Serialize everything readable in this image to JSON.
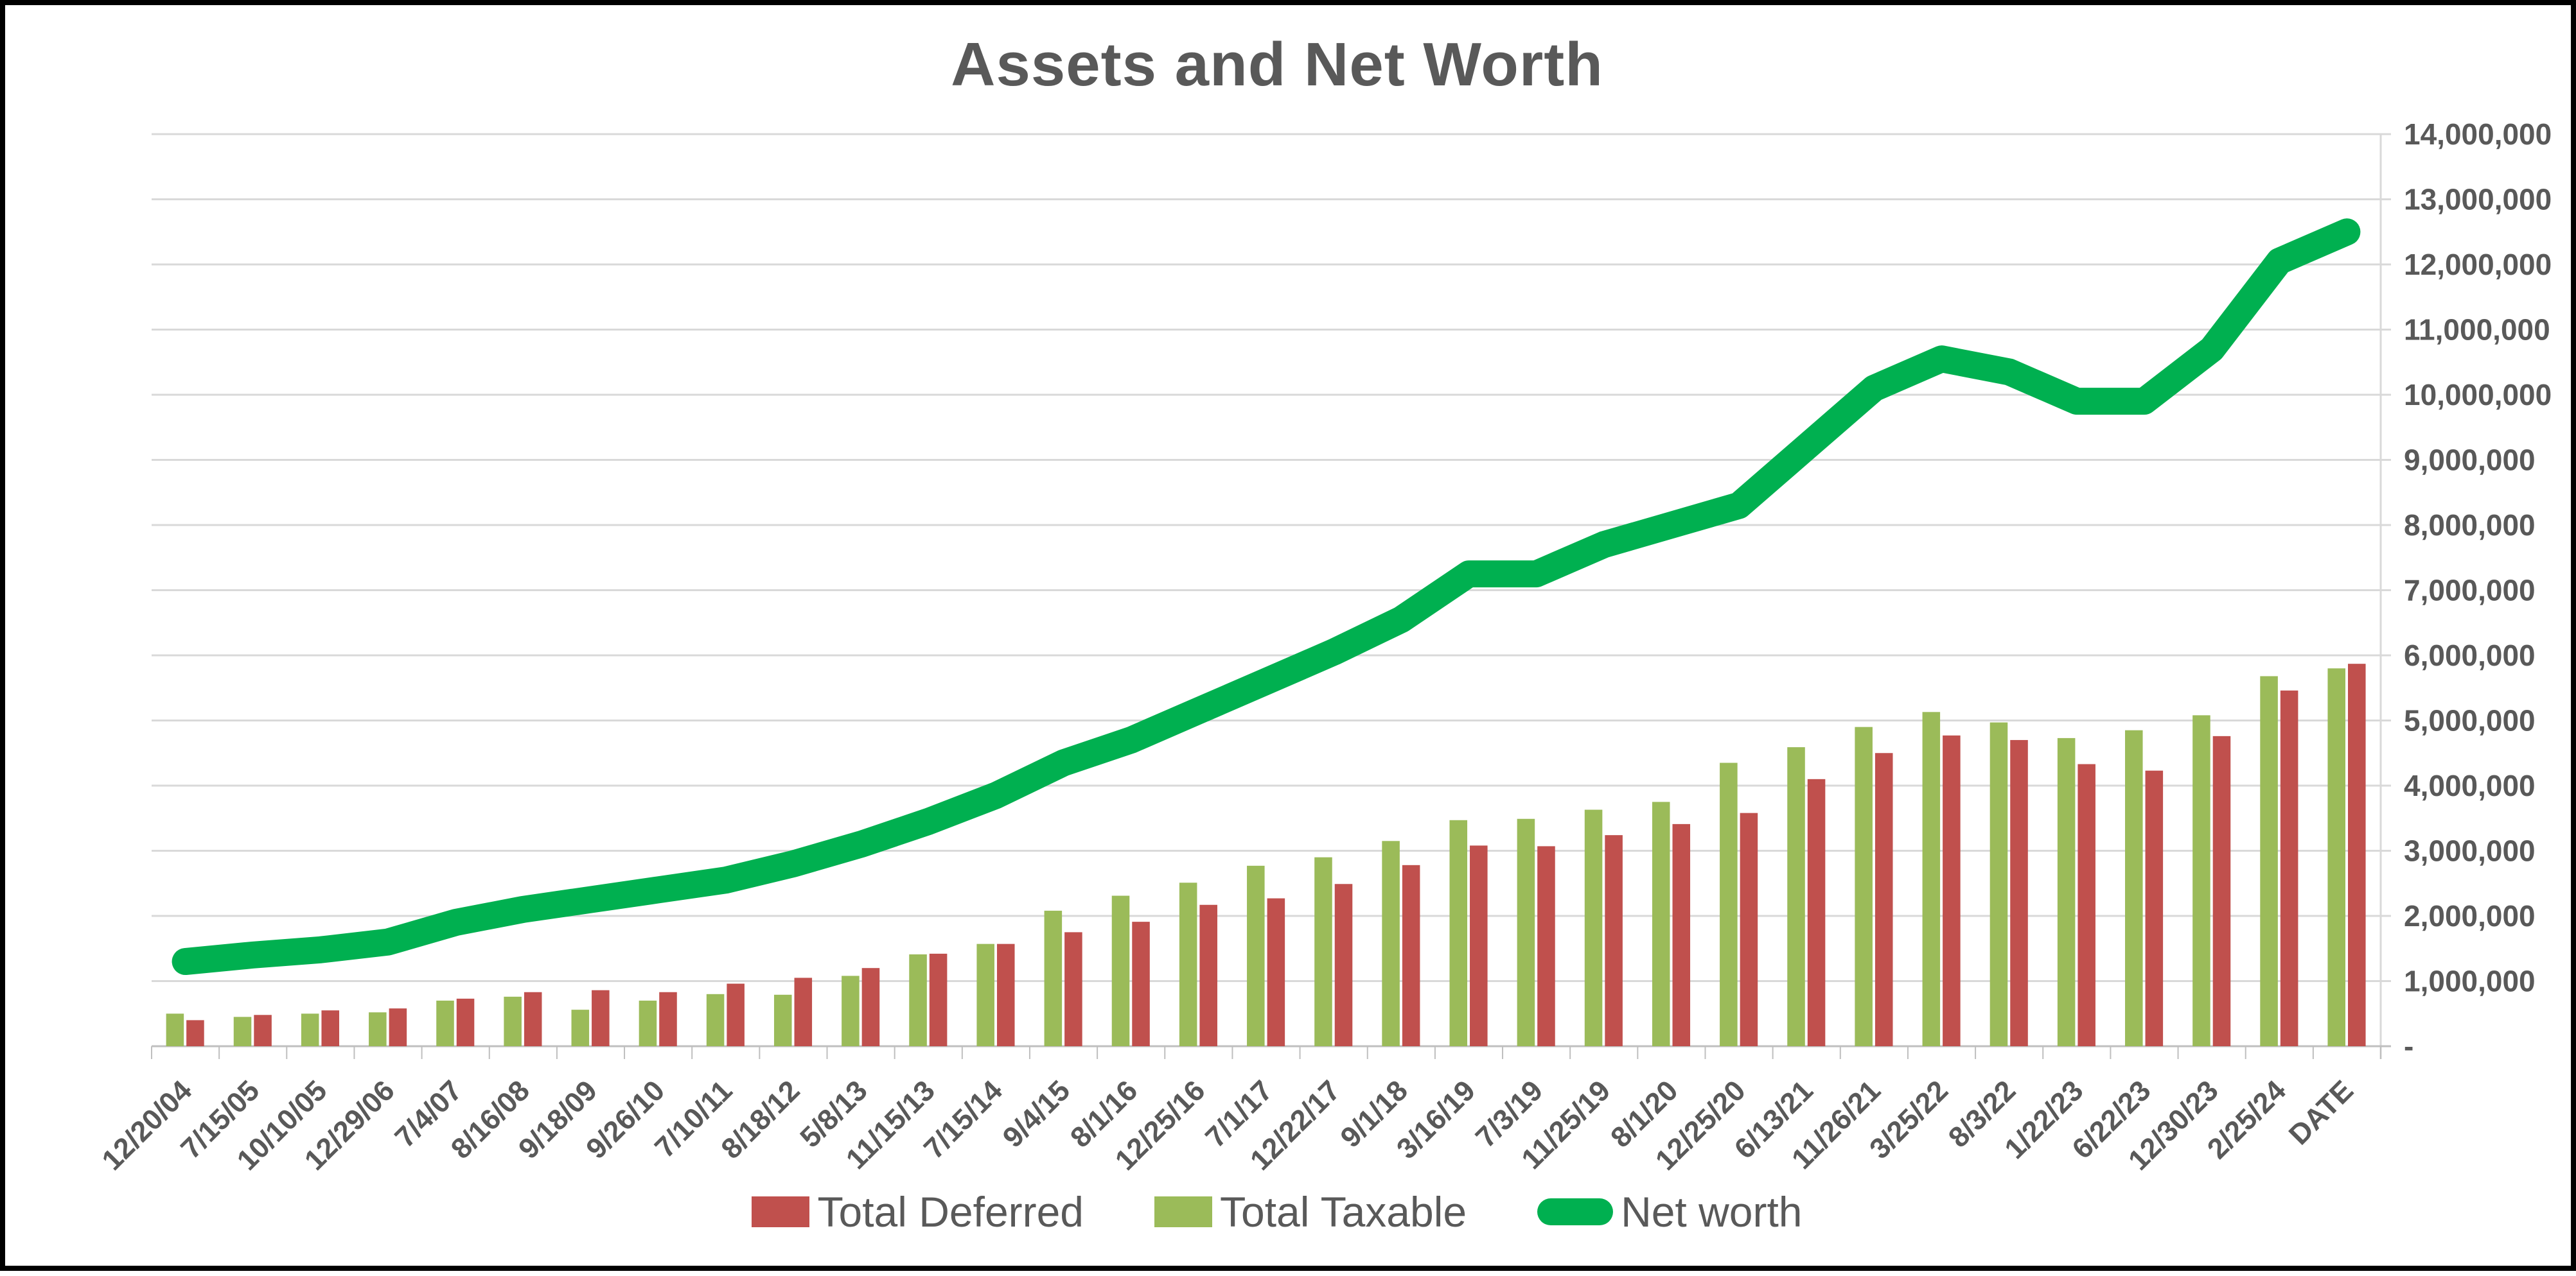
{
  "title": "Assets and Net Worth",
  "colors": {
    "background": "#FFFFFF",
    "border": "#000000",
    "grid": "#D9D9D9",
    "axis": "#BFBFBF",
    "text": "#595959",
    "deferred_red": "#C0504D",
    "taxable_green": "#9BBB59",
    "networth_green": "#00B050"
  },
  "chart_data": {
    "type": "bar",
    "title": "Assets and Net Worth",
    "xlabel": "",
    "ylabel": "",
    "ylim": [
      0,
      14000000
    ],
    "grid": true,
    "legend_position": "bottom",
    "y_ticks": [
      "-",
      "1,000,000",
      "2,000,000",
      "3,000,000",
      "4,000,000",
      "5,000,000",
      "6,000,000",
      "7,000,000",
      "8,000,000",
      "9,000,000",
      "10,000,000",
      "11,000,000",
      "12,000,000",
      "13,000,000",
      "14,000,000"
    ],
    "categories": [
      "12/20/04",
      "7/15/05",
      "10/10/05",
      "12/29/06",
      "7/4/07",
      "8/16/08",
      "9/18/09",
      "9/26/10",
      "7/10/11",
      "8/18/12",
      "5/8/13",
      "11/15/13",
      "7/15/14",
      "9/4/15",
      "8/1/16",
      "12/25/16",
      "7/1/17",
      "12/22/17",
      "9/1/18",
      "3/16/19",
      "7/3/19",
      "11/25/19",
      "8/1/20",
      "12/25/20",
      "6/13/21",
      "11/26/21",
      "3/25/22",
      "8/3/22",
      "1/22/23",
      "6/22/23",
      "12/30/23",
      "2/25/24",
      "DATE"
    ],
    "series": [
      {
        "name": "Total Deferred",
        "type": "bar",
        "color": "#C0504D",
        "values": [
          400000,
          480000,
          550000,
          580000,
          730000,
          830000,
          860000,
          830000,
          960000,
          1050000,
          1200000,
          1420000,
          1570000,
          1750000,
          1910000,
          2170000,
          2270000,
          2490000,
          2780000,
          3080000,
          3070000,
          3240000,
          3410000,
          3580000,
          4100000,
          4500000,
          4770000,
          4700000,
          4330000,
          4230000,
          4760000,
          5460000,
          5870000
        ]
      },
      {
        "name": "Total Taxable",
        "type": "bar",
        "color": "#9BBB59",
        "values": [
          500000,
          450000,
          500000,
          520000,
          700000,
          760000,
          560000,
          700000,
          800000,
          790000,
          1080000,
          1410000,
          1570000,
          2080000,
          2310000,
          2510000,
          2770000,
          2900000,
          3150000,
          3470000,
          3490000,
          3630000,
          3750000,
          4350000,
          4590000,
          4900000,
          5130000,
          4970000,
          4730000,
          4850000,
          5080000,
          5680000,
          5800000
        ]
      },
      {
        "name": "Net worth",
        "type": "line",
        "color": "#00B050",
        "values": [
          1300000,
          1400000,
          1480000,
          1600000,
          1900000,
          2100000,
          2250000,
          2400000,
          2550000,
          2800000,
          3100000,
          3450000,
          3850000,
          4350000,
          4700000,
          5150000,
          5600000,
          6050000,
          6550000,
          7250000,
          7250000,
          7700000,
          8000000,
          8300000,
          9200000,
          10100000,
          10550000,
          10350000,
          9900000,
          9900000,
          10700000,
          12050000,
          12500000
        ]
      }
    ]
  },
  "legend": {
    "items": [
      {
        "label": "Total Deferred",
        "swatch": "rect",
        "color": "#C0504D"
      },
      {
        "label": "Total Taxable",
        "swatch": "rect",
        "color": "#9BBB59"
      },
      {
        "label": "Net worth",
        "swatch": "line",
        "color": "#00B050"
      }
    ]
  }
}
